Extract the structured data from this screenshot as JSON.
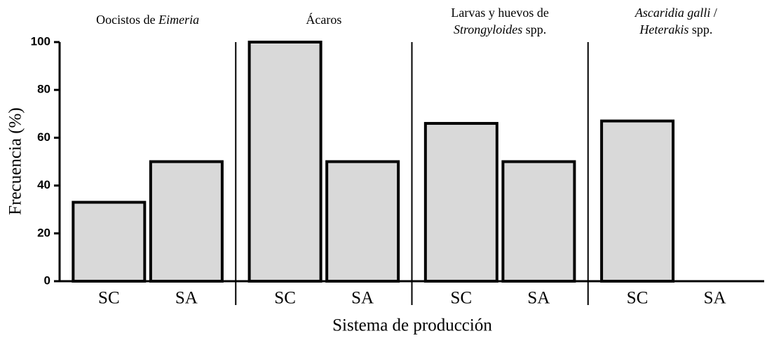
{
  "chart_data": {
    "type": "bar",
    "ylabel": "Frecuencia (%)",
    "xlabel": "Sistema de producción",
    "ylim": [
      0,
      100
    ],
    "yticks": [
      0,
      20,
      40,
      60,
      80,
      100
    ],
    "color": "#d9d9d9",
    "panels": [
      {
        "title_lines": [
          [
            {
              "text": "Oocistos de "
            },
            {
              "text": "Eimeria",
              "italic": true
            }
          ]
        ],
        "categories": [
          "SC",
          "SA"
        ],
        "values": [
          33,
          50
        ]
      },
      {
        "title_lines": [
          [
            {
              "text": "Ácaros"
            }
          ]
        ],
        "categories": [
          "SC",
          "SA"
        ],
        "values": [
          100,
          50
        ]
      },
      {
        "title_lines": [
          [
            {
              "text": "Larvas y huevos de"
            }
          ],
          [
            {
              "text": "Strongyloides",
              "italic": true
            },
            {
              "text": " spp."
            }
          ]
        ],
        "categories": [
          "SC",
          "SA"
        ],
        "values": [
          66,
          50
        ]
      },
      {
        "title_lines": [
          [
            {
              "text": "Ascaridia galli",
              "italic": true
            },
            {
              "text": " /"
            }
          ],
          [
            {
              "text": "Heterakis",
              "italic": true
            },
            {
              "text": " spp."
            }
          ]
        ],
        "categories": [
          "SC",
          "SA"
        ],
        "values": [
          67,
          0
        ]
      }
    ]
  }
}
